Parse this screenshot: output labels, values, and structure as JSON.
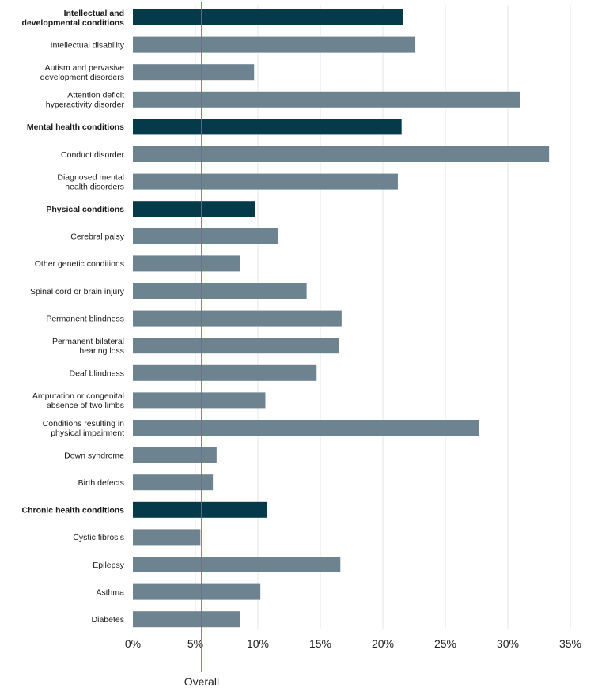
{
  "chart_data": {
    "type": "bar",
    "orientation": "horizontal",
    "title": "",
    "xlabel": "",
    "ylabel": "",
    "xlim": [
      0,
      35
    ],
    "xticks": [
      {
        "value": 0,
        "label": "0%"
      },
      {
        "value": 5,
        "label": "5%"
      },
      {
        "value": 10,
        "label": "10%"
      },
      {
        "value": 15,
        "label": "15%"
      },
      {
        "value": 20,
        "label": "20%"
      },
      {
        "value": 25,
        "label": "25%"
      },
      {
        "value": 30,
        "label": "30%"
      },
      {
        "value": 35,
        "label": "35%"
      }
    ],
    "grid": true,
    "reference_line": {
      "value": 5.5,
      "label": "Overall",
      "color": "#b5574b"
    },
    "colors": {
      "group": "#053a4a",
      "item": "#6e8390",
      "grid": "#e6e6e6"
    },
    "bars": [
      {
        "lines": [
          "Intellectual and",
          "developmental conditions"
        ],
        "value": 21.6,
        "group": true
      },
      {
        "lines": [
          "Intellectual disability"
        ],
        "value": 22.6,
        "group": false
      },
      {
        "lines": [
          "Autism and pervasive",
          "development disorders"
        ],
        "value": 9.7,
        "group": false
      },
      {
        "lines": [
          "Attention deficit",
          "hyperactivity disorder"
        ],
        "value": 31.0,
        "group": false
      },
      {
        "lines": [
          "Mental health conditions"
        ],
        "value": 21.5,
        "group": true
      },
      {
        "lines": [
          "Conduct disorder"
        ],
        "value": 33.3,
        "group": false
      },
      {
        "lines": [
          "Diagnosed mental",
          "health disorders"
        ],
        "value": 21.2,
        "group": false
      },
      {
        "lines": [
          "Physical conditions"
        ],
        "value": 9.8,
        "group": true
      },
      {
        "lines": [
          "Cerebral palsy"
        ],
        "value": 11.6,
        "group": false
      },
      {
        "lines": [
          "Other genetic conditions"
        ],
        "value": 8.6,
        "group": false
      },
      {
        "lines": [
          "Spinal cord or brain injury"
        ],
        "value": 13.9,
        "group": false
      },
      {
        "lines": [
          "Permanent blindness"
        ],
        "value": 16.7,
        "group": false
      },
      {
        "lines": [
          "Permanent bilateral",
          "hearing loss"
        ],
        "value": 16.5,
        "group": false
      },
      {
        "lines": [
          "Deaf blindness"
        ],
        "value": 14.7,
        "group": false
      },
      {
        "lines": [
          "Amputation or congenital",
          "absence of two limbs"
        ],
        "value": 10.6,
        "group": false
      },
      {
        "lines": [
          "Conditions resulting in",
          "physical impairment"
        ],
        "value": 27.7,
        "group": false
      },
      {
        "lines": [
          "Down syndrome"
        ],
        "value": 6.7,
        "group": false
      },
      {
        "lines": [
          "Birth defects"
        ],
        "value": 6.4,
        "group": false
      },
      {
        "lines": [
          "Chronic health conditions"
        ],
        "value": 10.7,
        "group": true
      },
      {
        "lines": [
          "Cystic fibrosis"
        ],
        "value": 5.4,
        "group": false
      },
      {
        "lines": [
          "Epilepsy"
        ],
        "value": 16.6,
        "group": false
      },
      {
        "lines": [
          "Asthma"
        ],
        "value": 10.2,
        "group": false
      },
      {
        "lines": [
          "Diabetes"
        ],
        "value": 8.6,
        "group": false
      }
    ]
  }
}
